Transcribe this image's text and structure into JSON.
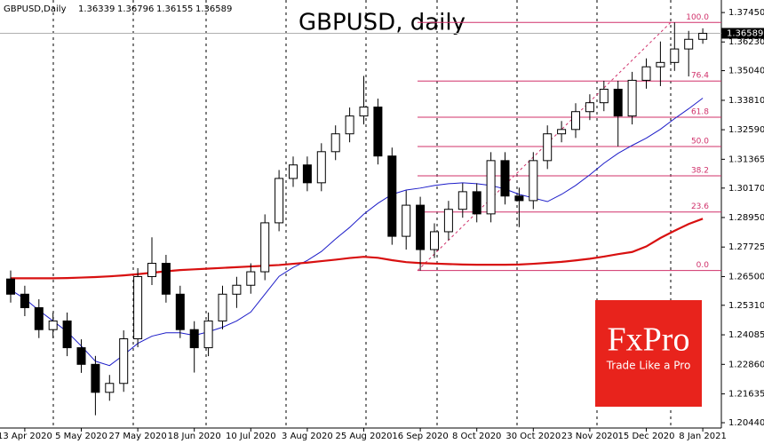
{
  "chart_data": {
    "type": "candlestick",
    "title": "GBPUSD, daily",
    "symbol_label": "GBPUSD,Daily",
    "categories": [
      null,
      "13 Apr 2020",
      null,
      null,
      null,
      "5 May 2020",
      null,
      null,
      null,
      "27 May 2020",
      null,
      null,
      null,
      "18 Jun 2020",
      null,
      null,
      null,
      "10 Jul 2020",
      null,
      null,
      null,
      "3 Aug 2020",
      null,
      null,
      null,
      "25 Aug 2020",
      null,
      null,
      null,
      "16 Sep 2020",
      null,
      null,
      null,
      "8 Oct 2020",
      null,
      null,
      null,
      "30 Oct 2020",
      null,
      null,
      null,
      "23 Nov 2020",
      null,
      null,
      null,
      "15 Dec 2020",
      null,
      null,
      null,
      "8 Jan 2021"
    ],
    "open": [
      1.264,
      1.2577,
      1.2521,
      1.243,
      1.2466,
      1.2355,
      1.2286,
      1.217,
      1.2207,
      1.2392,
      1.265,
      1.2705,
      1.2577,
      1.243,
      1.2355,
      1.2466,
      1.2577,
      1.2614,
      1.267,
      1.2873,
      1.3057,
      1.3113,
      1.3039,
      1.3168,
      1.3242,
      1.3316,
      1.3353,
      1.315,
      1.2817,
      1.2946,
      1.2762,
      1.2836,
      1.2929,
      1.3002,
      1.291,
      1.3131,
      1.2984,
      1.2965,
      1.3131,
      1.3242,
      1.326,
      1.3334,
      1.3371,
      1.3427,
      1.3316,
      1.3464,
      1.352,
      1.3538,
      1.3594,
      1.36339
    ],
    "high": [
      1.2675,
      1.2612,
      1.2556,
      1.2501,
      1.2501,
      1.239,
      1.2321,
      1.2242,
      1.2427,
      1.2685,
      1.2813,
      1.274,
      1.2612,
      1.2465,
      1.2501,
      1.2612,
      1.2649,
      1.2705,
      1.2908,
      1.3092,
      1.3148,
      1.3148,
      1.3203,
      1.3277,
      1.3351,
      1.3482,
      1.3388,
      1.3185,
      1.3007,
      1.2981,
      1.2871,
      1.2964,
      1.3037,
      1.3037,
      1.3166,
      1.3166,
      1.3019,
      1.3166,
      1.3277,
      1.3295,
      1.3369,
      1.3406,
      1.3462,
      1.3462,
      1.3499,
      1.3555,
      1.3625,
      1.3704,
      1.3669,
      1.36796
    ],
    "low": [
      1.2542,
      1.2486,
      1.2395,
      1.2395,
      1.232,
      1.2251,
      1.2075,
      1.2135,
      1.2172,
      1.2357,
      1.2615,
      1.2542,
      1.2395,
      1.2252,
      1.232,
      1.2431,
      1.252,
      1.2579,
      1.2635,
      1.2838,
      1.3022,
      1.3004,
      1.3004,
      1.3133,
      1.3207,
      1.3281,
      1.3115,
      1.2782,
      1.2762,
      1.2675,
      1.2727,
      1.2801,
      1.2894,
      1.2875,
      1.2875,
      1.2949,
      1.2855,
      1.293,
      1.3096,
      1.3207,
      1.3225,
      1.3299,
      1.3336,
      1.319,
      1.3281,
      1.3429,
      1.344,
      1.3503,
      1.348,
      1.36155
    ],
    "close": [
      1.2577,
      1.2521,
      1.243,
      1.2466,
      1.2355,
      1.2286,
      1.217,
      1.2207,
      1.2392,
      1.265,
      1.2705,
      1.2577,
      1.243,
      1.2355,
      1.2466,
      1.2577,
      1.2614,
      1.267,
      1.2873,
      1.3057,
      1.3113,
      1.3039,
      1.3168,
      1.3242,
      1.3316,
      1.3353,
      1.315,
      1.2817,
      1.2946,
      1.2762,
      1.2836,
      1.2929,
      1.3002,
      1.291,
      1.3131,
      1.2984,
      1.2965,
      1.3131,
      1.3242,
      1.326,
      1.3334,
      1.3371,
      1.3427,
      1.3316,
      1.3464,
      1.352,
      1.3538,
      1.3594,
      1.3634,
      1.36589
    ],
    "series": [
      {
        "color": "#1c1cc8",
        "values": [
          1.2595,
          1.2558,
          1.251,
          1.2466,
          1.2421,
          1.2362,
          1.2299,
          1.2281,
          1.2325,
          1.2373,
          1.2403,
          1.2417,
          1.2417,
          1.2406,
          1.2421,
          1.244,
          1.2466,
          1.2503,
          1.2577,
          1.2651,
          1.2688,
          1.2717,
          1.2754,
          1.2806,
          1.2854,
          1.2909,
          1.2954,
          1.2991,
          1.3009,
          1.3017,
          1.3028,
          1.3035,
          1.3039,
          1.3035,
          1.3028,
          1.3013,
          1.2991,
          1.2976,
          1.2961,
          1.2991,
          1.3028,
          1.3072,
          1.312,
          1.3161,
          1.3194,
          1.3224,
          1.3261,
          1.3305,
          1.3346,
          1.339
        ]
      },
      {
        "color": "#d81010",
        "values": [
          1.2643,
          1.2643,
          1.2643,
          1.2643,
          1.2644,
          1.2646,
          1.2648,
          1.2651,
          1.2655,
          1.266,
          1.2666,
          1.2672,
          1.2677,
          1.268,
          1.2683,
          1.2686,
          1.2689,
          1.2692,
          1.2695,
          1.2698,
          1.2703,
          1.2708,
          1.2714,
          1.272,
          1.2727,
          1.2732,
          1.2728,
          1.2718,
          1.271,
          1.2706,
          1.2704,
          1.2702,
          1.27,
          1.2699,
          1.2699,
          1.2699,
          1.27,
          1.2703,
          1.2707,
          1.2711,
          1.2717,
          1.2724,
          1.2733,
          1.2743,
          1.2752,
          1.2775,
          1.281,
          1.284,
          1.2868,
          1.289
        ]
      }
    ],
    "fibonacci": {
      "from": 1.2675,
      "to": 1.3704,
      "color": "#d0306a",
      "levels": [
        {
          "value": 100,
          "label": "100.0"
        },
        76.4,
        61.8,
        {
          "value": 50,
          "label": "50.0"
        },
        38.2,
        23.6,
        {
          "value": 0,
          "label": "0.0"
        }
      ]
    },
    "ylim": [
      1.2022,
      1.3797
    ],
    "yticks": [
      {
        "value": 1.3745,
        "label": "1.37450"
      },
      {
        "value": 1.3623,
        "label": "1.36230"
      },
      {
        "value": 1.3504,
        "label": "1.35040"
      },
      {
        "value": 1.3381,
        "label": "1.33810"
      },
      {
        "value": 1.3259,
        "label": "1.32590"
      },
      {
        "value": 1.31365,
        "label": "1.31365"
      },
      {
        "value": 1.3017,
        "label": "1.30170"
      },
      {
        "value": 1.2895,
        "label": "1.28950"
      },
      {
        "value": 1.27725,
        "label": "1.27725"
      },
      {
        "value": 1.265,
        "label": "1.26500"
      },
      {
        "value": 1.2531,
        "label": "1.25310"
      },
      {
        "value": 1.24085,
        "label": "1.24085"
      },
      {
        "value": 1.2286,
        "label": "1.22860"
      },
      {
        "value": 1.21635,
        "label": "1.21635"
      },
      {
        "value": 1.2044,
        "label": "1.20440"
      }
    ],
    "logo": {
      "name": "FxPro",
      "slogan": "Trade Like a Pro",
      "color": "#e8231c"
    }
  }
}
